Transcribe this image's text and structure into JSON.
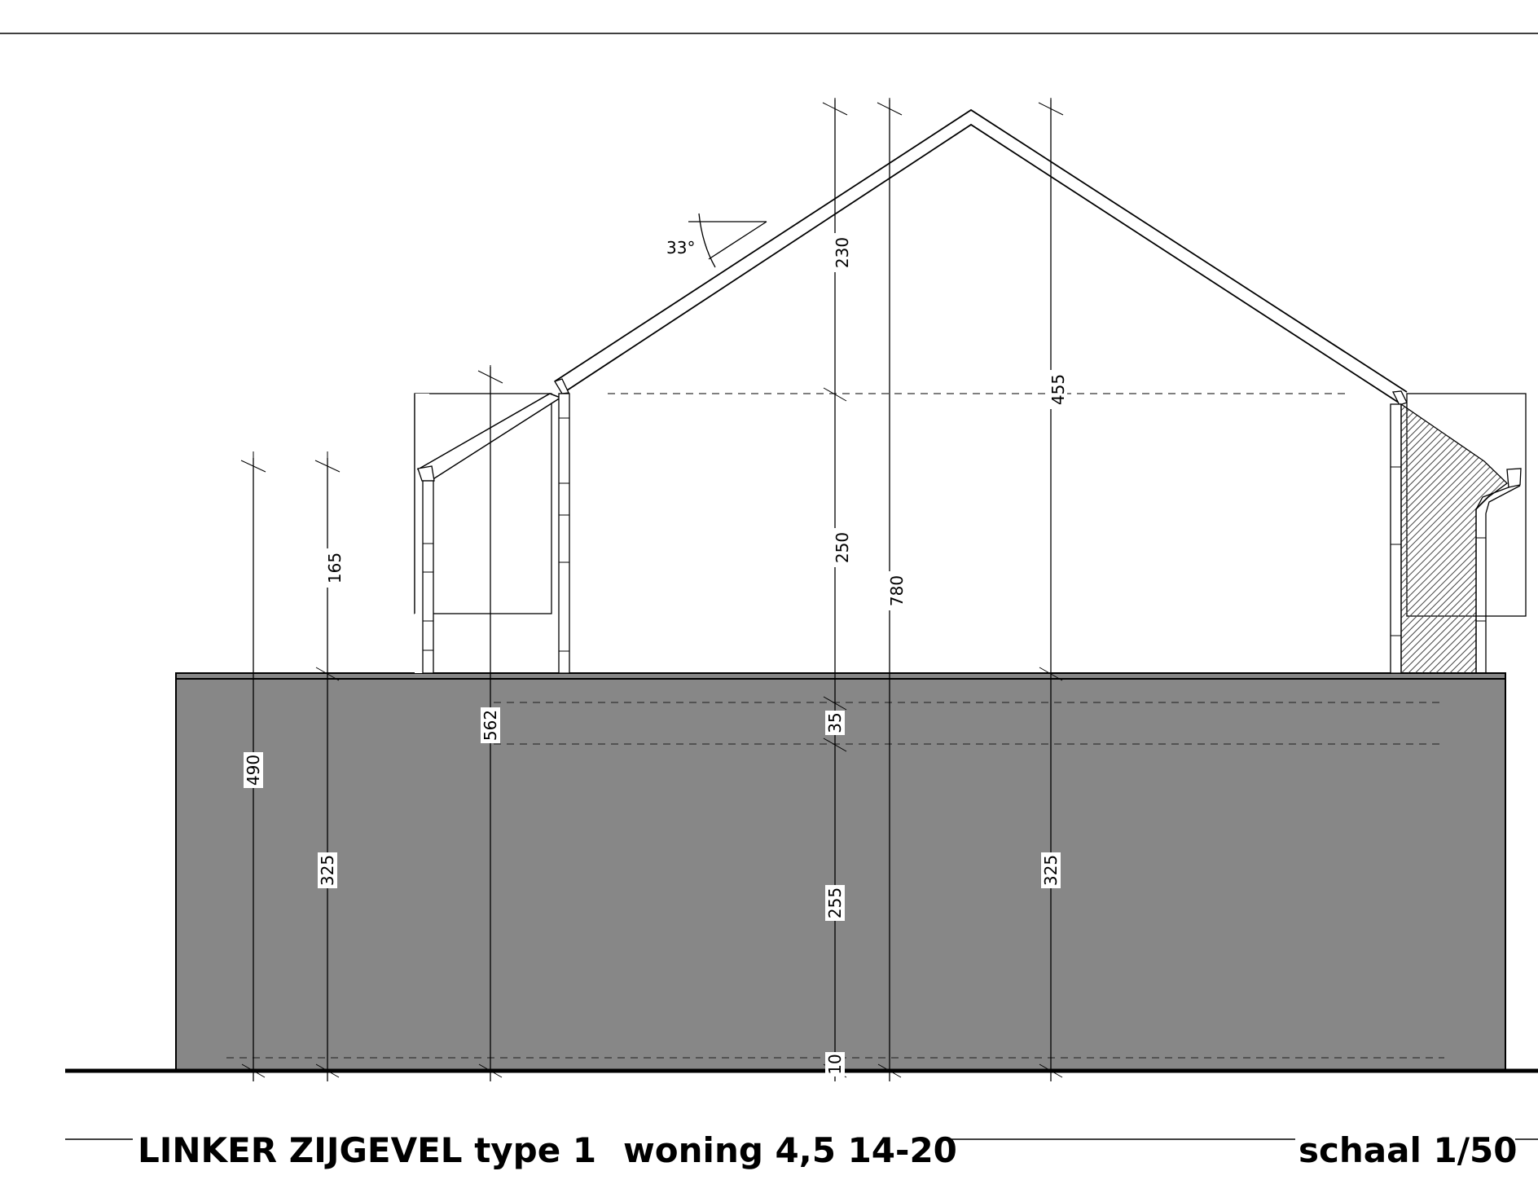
{
  "colors": {
    "wall_fill": "#878787",
    "hatch": "#444444",
    "line": "#000000",
    "background": "#ffffff"
  },
  "angle_label": "33°",
  "dimensions": {
    "roof_top": "230",
    "total_roof": "455",
    "upper_floor": "250",
    "total_height": "780",
    "left_cornice": "165",
    "left_outer": "490",
    "dormer_total": "562",
    "floor_slab": "35",
    "ground_floor": "255",
    "left_wall": "325",
    "right_wall": "325",
    "plinth": "10"
  },
  "title": {
    "name": "LINKER ZIJGEVEL type 1",
    "project": "woning 4,5 14-20",
    "scale": "schaal 1/50"
  }
}
